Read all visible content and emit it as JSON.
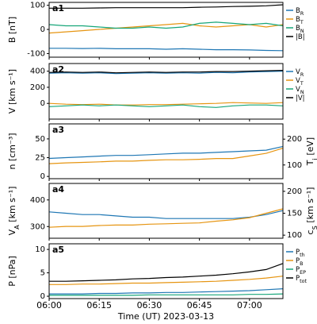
{
  "chart_data": [
    {
      "type": "line",
      "panel_label": "a1",
      "y_label": "B [nT]",
      "ylim": [
        -115,
        112
      ],
      "yticks": [
        -100,
        0,
        100
      ],
      "legend": "outside-right",
      "x": [
        "06:00",
        "06:05",
        "06:10",
        "06:15",
        "06:20",
        "06:25",
        "06:30",
        "06:35",
        "06:40",
        "06:45",
        "06:50",
        "06:55",
        "07:00",
        "07:05",
        "07:10"
      ],
      "series": [
        {
          "name": "B_{R}",
          "color": "#1f77b4",
          "values": [
            -78,
            -78,
            -79,
            -78,
            -80,
            -80,
            -80,
            -82,
            -80,
            -82,
            -84,
            -84,
            -85,
            -87,
            -88
          ]
        },
        {
          "name": "B_{T}",
          "color": "#e69512",
          "values": [
            -15,
            -10,
            -5,
            0,
            5,
            10,
            15,
            20,
            25,
            15,
            10,
            15,
            20,
            10,
            20
          ]
        },
        {
          "name": "B_{N}",
          "color": "#17a679",
          "values": [
            20,
            15,
            15,
            10,
            5,
            5,
            10,
            5,
            10,
            25,
            30,
            25,
            20,
            25,
            15
          ]
        },
        {
          "name": "|B|",
          "color": "#000000",
          "values": [
            88,
            88,
            88,
            89,
            90,
            90,
            90,
            90,
            90,
            92,
            93,
            95,
            96,
            98,
            102
          ]
        }
      ]
    },
    {
      "type": "line",
      "panel_label": "a2",
      "y_label": "V [km s⁻¹]",
      "ylim": [
        -195,
        495
      ],
      "yticks": [
        0,
        200,
        400
      ],
      "legend": "outside-right",
      "x": [
        "06:00",
        "06:05",
        "06:10",
        "06:15",
        "06:20",
        "06:25",
        "06:30",
        "06:35",
        "06:40",
        "06:45",
        "06:50",
        "06:55",
        "07:00",
        "07:05",
        "07:10"
      ],
      "series": [
        {
          "name": "V_{R}",
          "color": "#1f77b4",
          "values": [
            375,
            380,
            375,
            380,
            370,
            375,
            380,
            375,
            380,
            375,
            385,
            380,
            390,
            395,
            400
          ]
        },
        {
          "name": "V_{T}",
          "color": "#e69512",
          "values": [
            0,
            -10,
            -15,
            -10,
            -20,
            -20,
            -15,
            -15,
            -10,
            -5,
            0,
            10,
            5,
            0,
            10
          ]
        },
        {
          "name": "V_{N}",
          "color": "#17a679",
          "values": [
            -40,
            -30,
            -20,
            -30,
            -20,
            -30,
            -40,
            -30,
            -20,
            -40,
            -50,
            -30,
            -20,
            -20,
            -30
          ]
        },
        {
          "name": "|V|",
          "color": "#000000",
          "values": [
            385,
            390,
            385,
            390,
            380,
            385,
            390,
            385,
            390,
            390,
            395,
            395,
            400,
            405,
            410
          ]
        }
      ]
    },
    {
      "type": "line",
      "panel_label": "a3",
      "y_label": "n [cm⁻³]",
      "y_label_color": "#1f77b4",
      "ylim": [
        -3,
        70
      ],
      "yticks": [
        0,
        25,
        50
      ],
      "y2_label": "T_{i} [eV]",
      "y2_label_color": "#e69512",
      "y2lim": [
        47,
        259
      ],
      "y2ticks": [
        100,
        200
      ],
      "x": [
        "06:00",
        "06:05",
        "06:10",
        "06:15",
        "06:20",
        "06:25",
        "06:30",
        "06:35",
        "06:40",
        "06:45",
        "06:50",
        "06:55",
        "07:00",
        "07:05",
        "07:10"
      ],
      "series": [
        {
          "name": "n",
          "color": "#1f77b4",
          "values": [
            24,
            25,
            26,
            27,
            28,
            28,
            29,
            30,
            31,
            31,
            32,
            33,
            34,
            35,
            40
          ]
        },
        {
          "name": "T_{i}",
          "color": "#e69512",
          "axis": "y2",
          "values": [
            105,
            108,
            110,
            112,
            115,
            115,
            118,
            120,
            120,
            122,
            125,
            125,
            135,
            145,
            165
          ]
        }
      ]
    },
    {
      "type": "line",
      "panel_label": "a4",
      "y_label": "V_{A} [km s⁻¹]",
      "y_label_color": "#1f77b4",
      "ylim": [
        256,
        462
      ],
      "yticks": [
        300,
        400
      ],
      "y2_label": "c_{S} [km s⁻¹]",
      "y2_label_color": "#e69512",
      "y2lim": [
        93,
        218
      ],
      "y2ticks": [
        100,
        150,
        200
      ],
      "x": [
        "06:00",
        "06:05",
        "06:10",
        "06:15",
        "06:20",
        "06:25",
        "06:30",
        "06:35",
        "06:40",
        "06:45",
        "06:50",
        "06:55",
        "07:00",
        "07:05",
        "07:10"
      ],
      "series": [
        {
          "name": "V_{A}",
          "color": "#1f77b4",
          "values": [
            355,
            350,
            345,
            345,
            340,
            335,
            335,
            330,
            330,
            330,
            330,
            330,
            335,
            345,
            360
          ]
        },
        {
          "name": "c_{S}",
          "color": "#e69512",
          "axis": "y2",
          "values": [
            118,
            120,
            120,
            122,
            123,
            123,
            125,
            126,
            127,
            128,
            132,
            135,
            140,
            150,
            160
          ]
        }
      ]
    },
    {
      "type": "line",
      "panel_label": "a5",
      "y_label": "P [nPa]",
      "ylim": [
        -0.5,
        11.2
      ],
      "yticks": [
        0,
        5,
        10
      ],
      "legend": "outside-right",
      "x_label": "Time (UT)  2023-03-13",
      "xlim": [
        "06:00",
        "07:10"
      ],
      "xticks": [
        "06:00",
        "06:15",
        "06:30",
        "06:45",
        "07:00"
      ],
      "x": [
        "06:00",
        "06:05",
        "06:10",
        "06:15",
        "06:20",
        "06:25",
        "06:30",
        "06:35",
        "06:40",
        "06:45",
        "06:50",
        "06:55",
        "07:00",
        "07:05",
        "07:10"
      ],
      "series": [
        {
          "name": "P_{th}",
          "color": "#1f77b4",
          "values": [
            0.5,
            0.5,
            0.5,
            0.6,
            0.6,
            0.7,
            0.7,
            0.8,
            0.8,
            0.9,
            1.0,
            1.1,
            1.2,
            1.4,
            1.6
          ]
        },
        {
          "name": "P_{B}",
          "color": "#e69512",
          "values": [
            2.5,
            2.5,
            2.6,
            2.6,
            2.7,
            2.8,
            2.8,
            2.9,
            3.0,
            3.1,
            3.2,
            3.4,
            3.6,
            3.9,
            4.3
          ]
        },
        {
          "name": "P_{EP}",
          "color": "#17a679",
          "values": [
            0.2,
            0.2,
            0.2,
            0.2,
            0.2,
            0.2,
            0.3,
            0.3,
            0.3,
            0.3,
            0.3,
            0.3,
            0.4,
            0.4,
            0.5
          ]
        },
        {
          "name": "P_{tot}",
          "color": "#000000",
          "values": [
            3.2,
            3.2,
            3.3,
            3.4,
            3.5,
            3.7,
            3.8,
            4.0,
            4.1,
            4.3,
            4.5,
            4.8,
            5.2,
            5.7,
            7.0
          ]
        }
      ]
    }
  ]
}
